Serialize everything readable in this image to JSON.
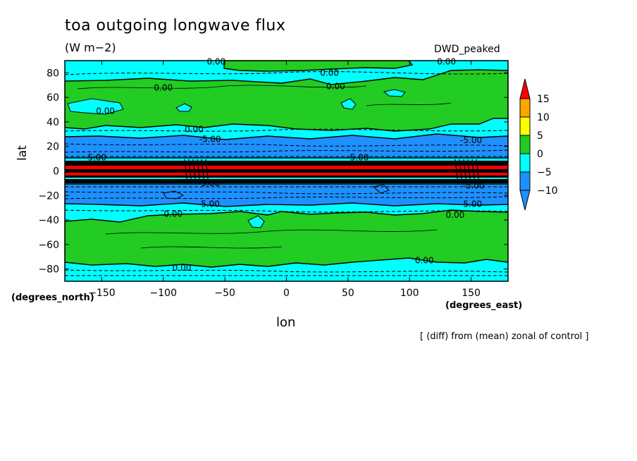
{
  "chart_data": {
    "type": "heatmap",
    "title": "toa outgoing longwave flux",
    "units": "(W m−2)",
    "dataset": "DWD_peaked",
    "xlabel": "lon",
    "ylabel": "lat",
    "x_units": "(degrees_east)",
    "y_units": "(degrees_north)",
    "note": "[ (diff) from (mean) zonal of control ]",
    "xlim": [
      -180,
      180
    ],
    "ylim": [
      -90,
      90
    ],
    "x_ticks": [
      -150,
      -100,
      -50,
      0,
      50,
      100,
      150
    ],
    "y_ticks": [
      -80,
      -60,
      -40,
      -20,
      0,
      20,
      40,
      60,
      80
    ],
    "x_tick_labels": [
      "−150",
      "−100",
      "−50",
      "0",
      "50",
      "100",
      "150"
    ],
    "y_tick_labels": [
      "−80",
      "−60",
      "−40",
      "−20",
      "0",
      "20",
      "40",
      "60",
      "80"
    ],
    "colorbar": {
      "levels": [
        -10,
        -5,
        0,
        5,
        10,
        15
      ],
      "labels": [
        "−10",
        "−5",
        "0",
        "5",
        "10",
        "15"
      ],
      "colors": [
        "#1e90ff",
        "#00ffff",
        "#22cc22",
        "#ffff00",
        "#ffa500",
        "#ff0000"
      ]
    },
    "zonal_bands": [
      {
        "lat_from": 83,
        "lat_to": 90,
        "range": "0 to 5"
      },
      {
        "lat_from": 70,
        "lat_to": 83,
        "range": "-5 to 0"
      },
      {
        "lat_from": 36,
        "lat_to": 70,
        "range": "0 to 5"
      },
      {
        "lat_from": 28,
        "lat_to": 36,
        "range": "-5 to 0"
      },
      {
        "lat_from": 9,
        "lat_to": 28,
        "range": "-10 to -5"
      },
      {
        "lat_from": 6,
        "lat_to": 9,
        "range": "-5 to 0"
      },
      {
        "lat_from": -7,
        "lat_to": 6,
        "range": "below -10 and above 15 (alternating strong gradients)"
      },
      {
        "lat_from": -10,
        "lat_to": -7,
        "range": "-5 to 0"
      },
      {
        "lat_from": -26,
        "lat_to": -10,
        "range": "-10 to -5"
      },
      {
        "lat_from": -34,
        "lat_to": -26,
        "range": "-5 to 0"
      },
      {
        "lat_from": -74,
        "lat_to": -34,
        "range": "0 to 5"
      },
      {
        "lat_from": -90,
        "lat_to": -74,
        "range": "-5 to 0"
      }
    ],
    "contour_labels": [
      {
        "text": "0.00",
        "lon": -57,
        "lat": 89
      },
      {
        "text": "0.00",
        "lon": 35,
        "lat": 80
      },
      {
        "text": "0.00",
        "lon": 130,
        "lat": 89
      },
      {
        "text": "0.00",
        "lon": -100,
        "lat": 68
      },
      {
        "text": "0.00",
        "lon": 40,
        "lat": 69
      },
      {
        "text": "0.00",
        "lon": -147,
        "lat": 49
      },
      {
        "text": "0.00",
        "lon": -75,
        "lat": 34
      },
      {
        "text": "-5.00",
        "lon": -62,
        "lat": 26
      },
      {
        "text": "-5.00",
        "lon": -155,
        "lat": 11
      },
      {
        "text": "-5.00",
        "lon": 58,
        "lat": 11
      },
      {
        "text": "-5.00",
        "lon": 150,
        "lat": 25
      },
      {
        "text": "-5.00",
        "lon": -63,
        "lat": -10
      },
      {
        "text": "-5.00",
        "lon": 152,
        "lat": -12
      },
      {
        "text": "-5.00",
        "lon": -63,
        "lat": -27
      },
      {
        "text": "-5.00",
        "lon": 150,
        "lat": -27
      },
      {
        "text": "0.00",
        "lon": -92,
        "lat": -35
      },
      {
        "text": "0.00",
        "lon": 137,
        "lat": -36
      },
      {
        "text": "0.00",
        "lon": -85,
        "lat": -79
      },
      {
        "text": "0.00",
        "lon": 112,
        "lat": -73
      }
    ]
  }
}
